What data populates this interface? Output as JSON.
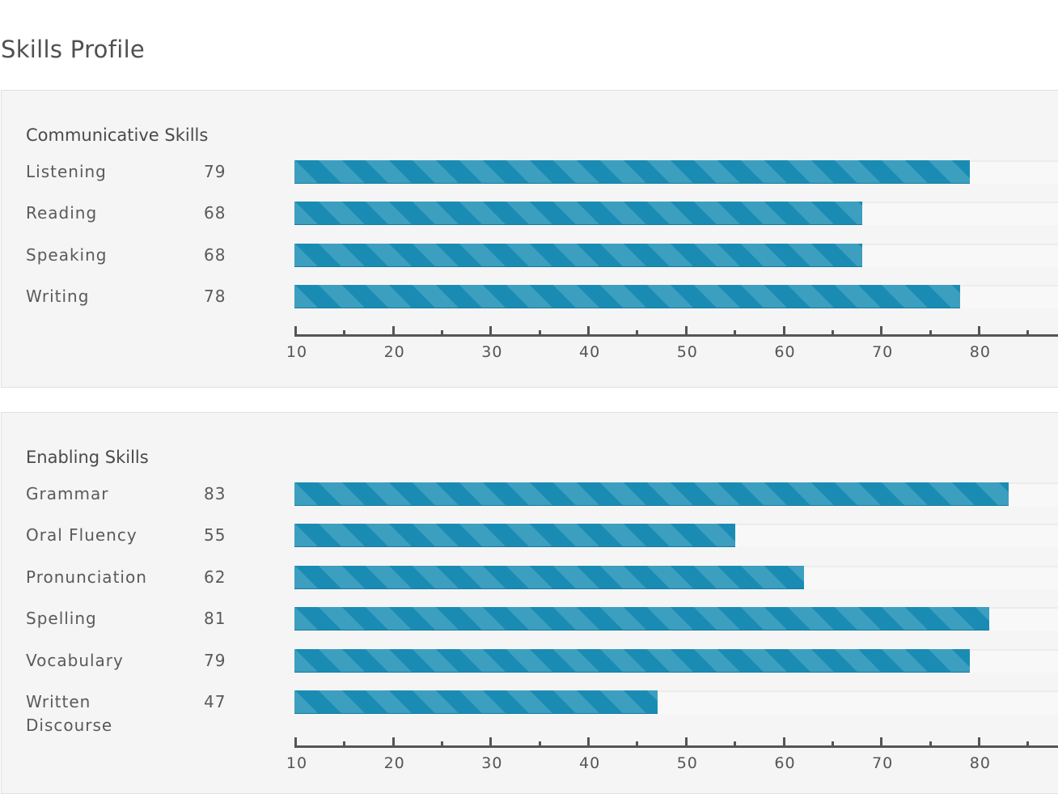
{
  "page_title": "Skills Profile",
  "chart_data": [
    {
      "type": "bar",
      "orientation": "horizontal",
      "title": "Communicative Skills",
      "categories": [
        "Listening",
        "Reading",
        "Speaking",
        "Writing"
      ],
      "values": [
        79,
        68,
        68,
        78
      ],
      "xlim": [
        10,
        88
      ],
      "xticks": [
        10,
        20,
        30,
        40,
        50,
        60,
        70,
        80
      ],
      "minor_tick_step": 5,
      "bar_colors": [
        "#1a8cb4",
        "#3d9fc0"
      ]
    },
    {
      "type": "bar",
      "orientation": "horizontal",
      "title": "Enabling Skills",
      "categories": [
        "Grammar",
        "Oral Fluency",
        "Pronunciation",
        "Spelling",
        "Vocabulary",
        "Written Discourse"
      ],
      "values": [
        83,
        55,
        62,
        81,
        79,
        47
      ],
      "xlim": [
        10,
        88
      ],
      "xticks": [
        10,
        20,
        30,
        40,
        50,
        60,
        70,
        80
      ],
      "minor_tick_step": 5,
      "bar_colors": [
        "#1a8cb4",
        "#3d9fc0"
      ]
    }
  ]
}
